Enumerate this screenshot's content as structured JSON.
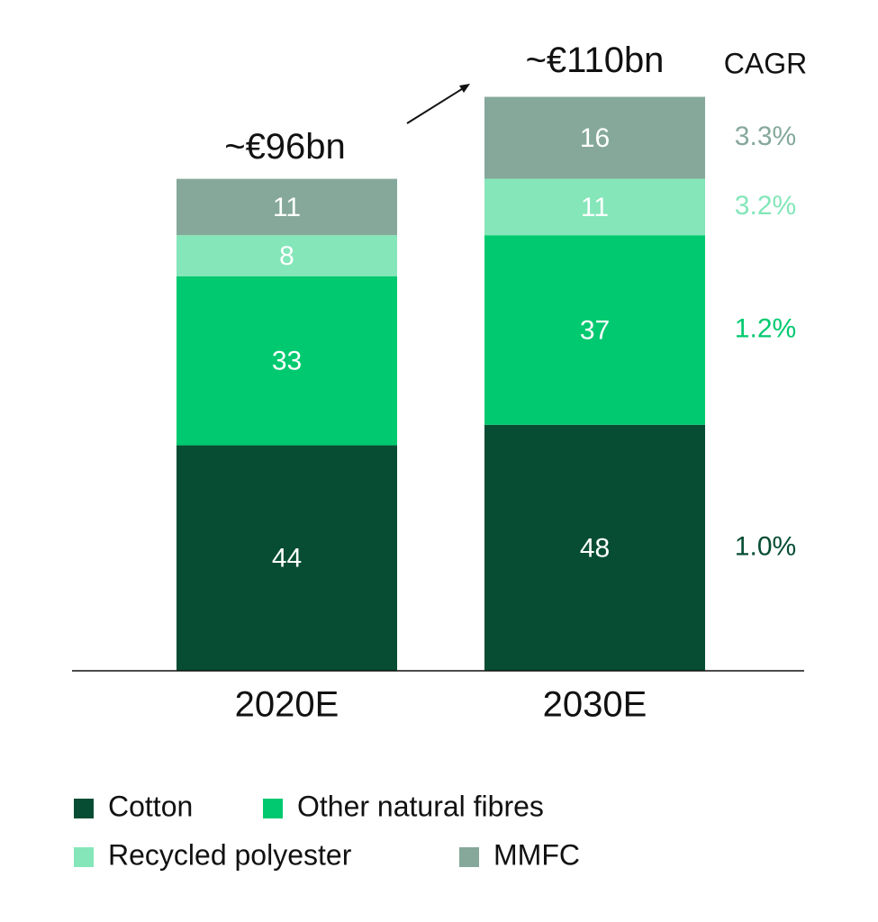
{
  "chart_data": {
    "type": "stacked-bar",
    "categories": [
      "2020E",
      "2030E"
    ],
    "total_labels": [
      "~€96bn",
      "~€110bn"
    ],
    "cagr_title": "CAGR",
    "series": [
      {
        "name": "Cotton",
        "color": "#064d33",
        "values": [
          44,
          48
        ],
        "cagr": "1.0%"
      },
      {
        "name": "Other natural fibres",
        "color": "#00c96f",
        "values": [
          33,
          37
        ],
        "cagr": "1.2%"
      },
      {
        "name": "Recycled polyester",
        "color": "#84e6b9",
        "values": [
          8,
          11
        ],
        "cagr": "3.2%"
      },
      {
        "name": "MMFC",
        "color": "#85a89a",
        "values": [
          11,
          16
        ],
        "cagr": "3.3%"
      }
    ],
    "ylim": [
      0,
      120
    ]
  }
}
